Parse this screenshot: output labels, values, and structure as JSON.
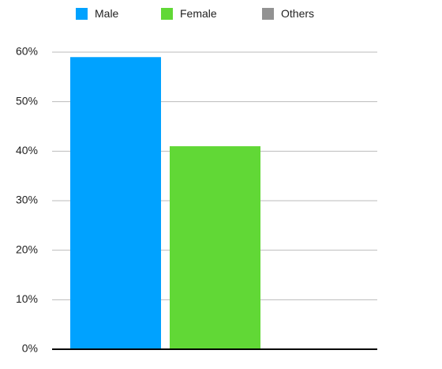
{
  "chart_data": {
    "type": "bar",
    "categories": [
      null
    ],
    "series": [
      {
        "name": "Male",
        "color": "#00a2ff",
        "values": [
          59
        ]
      },
      {
        "name": "Female",
        "color": "#61d836",
        "values": [
          41
        ]
      },
      {
        "name": "Others",
        "color": "#929292",
        "values": [
          0
        ]
      }
    ],
    "ylim": [
      0,
      60
    ],
    "yticks": [
      {
        "value": 0,
        "label": "0%"
      },
      {
        "value": 10,
        "label": "10%"
      },
      {
        "value": 20,
        "label": "20%"
      },
      {
        "value": 30,
        "label": "30%"
      },
      {
        "value": 40,
        "label": "40%"
      },
      {
        "value": 50,
        "label": "50%"
      },
      {
        "value": 60,
        "label": "60%"
      }
    ],
    "grid": true,
    "legend": "top"
  }
}
